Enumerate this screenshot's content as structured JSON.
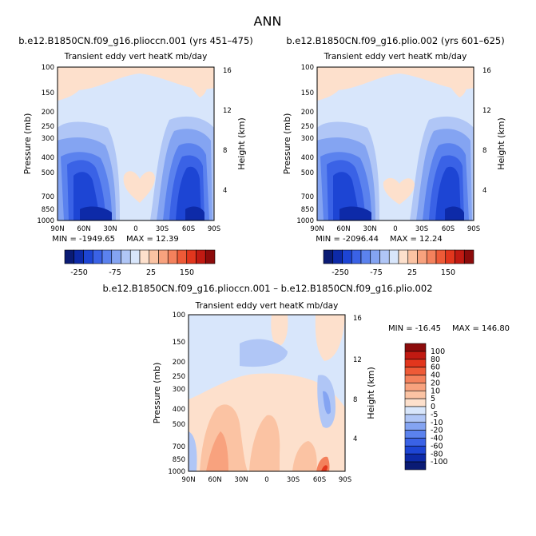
{
  "figure_title": "ANN",
  "colors": {
    "top_colorbar": [
      "#0a1b74",
      "#0d2aa8",
      "#1d45d4",
      "#3a62e6",
      "#5b82ee",
      "#84a4f2",
      "#b0c6f6",
      "#d8e6fb",
      "#fde0cc",
      "#fbc3a3",
      "#f8a27e",
      "#f4815c",
      "#ee5a37",
      "#e2361d",
      "#c11a12",
      "#8c0b0b"
    ],
    "bottom_colorbar": [
      "#8c0b0b",
      "#c11a12",
      "#e2361d",
      "#ee5a37",
      "#f4815c",
      "#f8a27e",
      "#fbc3a3",
      "#fde0cc",
      "#d8e6fb",
      "#b0c6f6",
      "#84a4f2",
      "#5b82ee",
      "#3a62e6",
      "#1d45d4",
      "#0d2aa8",
      "#0a1b74"
    ]
  },
  "chart_data": [
    {
      "type": "heatmap",
      "title": "b.e12.B1850CN.f09_g16.plioccn.001 (yrs 451–475)",
      "subtitle": "Transient eddy vert heatK mb/day",
      "ylabel": "Pressure (mb)",
      "ylabel_right": "Height (km)",
      "x_ticks": [
        "90N",
        "60N",
        "30N",
        "0",
        "30S",
        "60S",
        "90S"
      ],
      "y_ticks": [
        "100",
        "150",
        "200",
        "250",
        "300",
        "400",
        "500",
        "700",
        "850",
        "1000"
      ],
      "y_right_ticks": [
        "16",
        "12",
        "8",
        "4"
      ],
      "min_text": "MIN = -1949.65",
      "max_text": "MAX = 12.39",
      "colorbar_ticks": [
        "-250",
        "-75",
        "25",
        "150"
      ]
    },
    {
      "type": "heatmap",
      "title": "b.e12.B1850CN.f09_g16.plio.002 (yrs 601–625)",
      "subtitle": "Transient eddy vert heatK mb/day",
      "ylabel": "Pressure (mb)",
      "ylabel_right": "Height (km)",
      "x_ticks": [
        "90N",
        "60N",
        "30N",
        "0",
        "30S",
        "60S",
        "90S"
      ],
      "y_ticks": [
        "100",
        "150",
        "200",
        "250",
        "300",
        "400",
        "500",
        "700",
        "850",
        "1000"
      ],
      "y_right_ticks": [
        "16",
        "12",
        "8",
        "4"
      ],
      "min_text": "MIN = -2096.44",
      "max_text": "MAX = 12.24",
      "colorbar_ticks": [
        "-250",
        "-75",
        "25",
        "150"
      ]
    },
    {
      "type": "heatmap",
      "title": "b.e12.B1850CN.f09_g16.plioccn.001 – b.e12.B1850CN.f09_g16.plio.002",
      "subtitle": "Transient eddy vert heatK mb/day",
      "ylabel": "Pressure (mb)",
      "ylabel_right": "Height (km)",
      "x_ticks": [
        "90N",
        "60N",
        "30N",
        "0",
        "30S",
        "60S",
        "90S"
      ],
      "y_ticks": [
        "100",
        "150",
        "200",
        "250",
        "300",
        "400",
        "500",
        "700",
        "850",
        "1000"
      ],
      "y_right_ticks": [
        "16",
        "12",
        "8",
        "4"
      ],
      "min_text": "MIN = -16.45",
      "max_text": "MAX = 146.80",
      "colorbar_levels": [
        "100",
        "80",
        "60",
        "40",
        "20",
        "10",
        "5",
        "0",
        "-5",
        "-10",
        "-20",
        "-40",
        "-60",
        "-80",
        "-100"
      ]
    }
  ]
}
